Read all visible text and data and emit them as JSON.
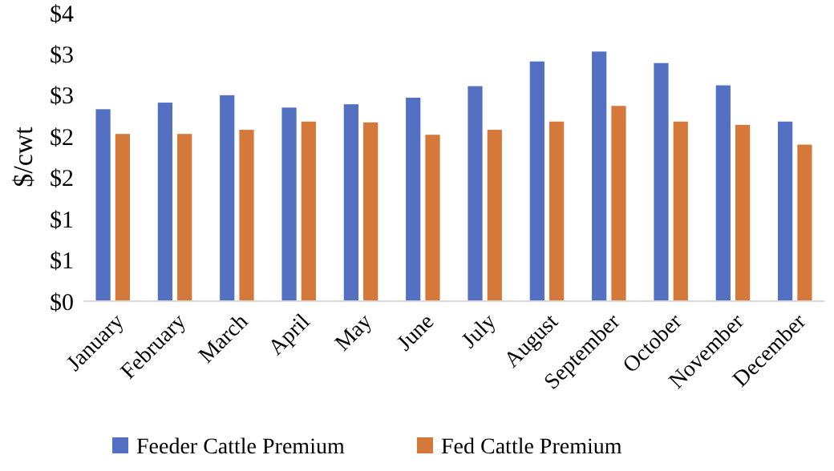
{
  "chart_data": {
    "type": "bar",
    "ylabel": "$/cwt",
    "categories": [
      "January",
      "February",
      "March",
      "April",
      "May",
      "June",
      "July",
      "August",
      "September",
      "October",
      "November",
      "December"
    ],
    "series": [
      {
        "name": "Feeder Cattle Premium",
        "color": "#5470c2",
        "values": [
          2.33,
          2.41,
          2.5,
          2.35,
          2.39,
          2.47,
          2.61,
          2.91,
          3.03,
          2.89,
          2.62,
          2.18
        ]
      },
      {
        "name": "Fed Cattle Premium",
        "color": "#d4793a",
        "values": [
          2.03,
          2.03,
          2.08,
          2.18,
          2.17,
          2.02,
          2.08,
          2.18,
          2.37,
          2.18,
          2.14,
          1.9
        ]
      }
    ],
    "ylim": [
      0,
      3.5
    ],
    "yticks": [
      {
        "value": 0,
        "label": "$0"
      },
      {
        "value": 0.5,
        "label": "$1"
      },
      {
        "value": 1,
        "label": "$1"
      },
      {
        "value": 1.5,
        "label": "$2"
      },
      {
        "value": 2,
        "label": "$2"
      },
      {
        "value": 2.5,
        "label": "$3"
      },
      {
        "value": 3,
        "label": "$3"
      },
      {
        "value": 3.5,
        "label": "$4"
      }
    ],
    "legend": "bottom"
  }
}
